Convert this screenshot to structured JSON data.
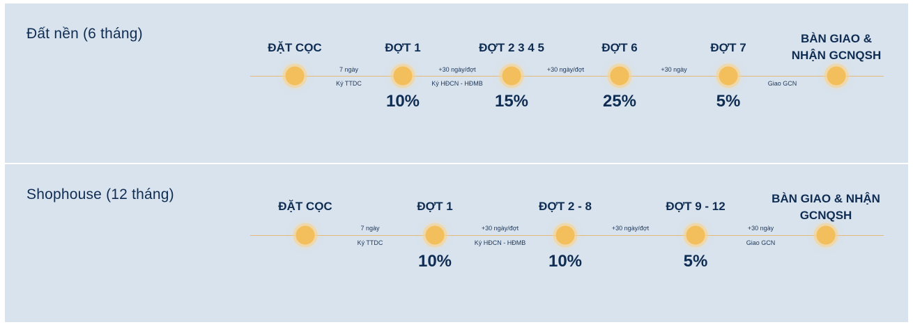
{
  "plans": [
    {
      "title": "Đất nền (6 tháng)",
      "stages": [
        {
          "name": [
            "ĐẶT CỌC"
          ],
          "percent": ""
        },
        {
          "name": [
            "ĐỢT 1"
          ],
          "percent": "10%"
        },
        {
          "name": [
            "ĐỢT 2 3 4 5"
          ],
          "percent": "15%"
        },
        {
          "name": [
            "ĐỢT 6"
          ],
          "percent": "25%"
        },
        {
          "name": [
            "ĐỢT 7"
          ],
          "percent": "5%"
        },
        {
          "name": [
            "BÀN GIAO &",
            "NHẬN GCNQSH"
          ],
          "percent": ""
        }
      ],
      "intervals": [
        {
          "above": "7 ngày",
          "below": "Ký TTDC"
        },
        {
          "above": "+30 ngày/đợt",
          "below": "Ký HĐCN - HĐMB"
        },
        {
          "above": "+30 ngày/đợt",
          "below": ""
        },
        {
          "above": "+30 ngày",
          "below": ""
        },
        {
          "above": "",
          "below": "Giao GCN"
        }
      ]
    },
    {
      "title": "Shophouse (12 tháng)",
      "stages": [
        {
          "name": [
            "ĐẶT CỌC"
          ],
          "percent": ""
        },
        {
          "name": [
            "ĐỢT 1"
          ],
          "percent": "10%"
        },
        {
          "name": [
            "ĐỢT 2 - 8"
          ],
          "percent": "10%"
        },
        {
          "name": [
            "ĐỢT 9 - 12"
          ],
          "percent": "5%"
        },
        {
          "name": [
            "BÀN GIAO & NHẬN",
            "GCNQSH"
          ],
          "percent": ""
        }
      ],
      "intervals": [
        {
          "above": "7 ngày",
          "below": "Ký TTDC"
        },
        {
          "above": "+30 ngày/đợt",
          "below": "Ký HĐCN - HĐMB"
        },
        {
          "above": "+30 ngày/đợt",
          "below": ""
        },
        {
          "above": "+30 ngày",
          "below": "Giao GCN"
        }
      ]
    }
  ],
  "colors": {
    "panel": "#d9e3ee",
    "text": "#0f2d52",
    "track": "#e4b978",
    "dot": "#f3bf5c"
  }
}
